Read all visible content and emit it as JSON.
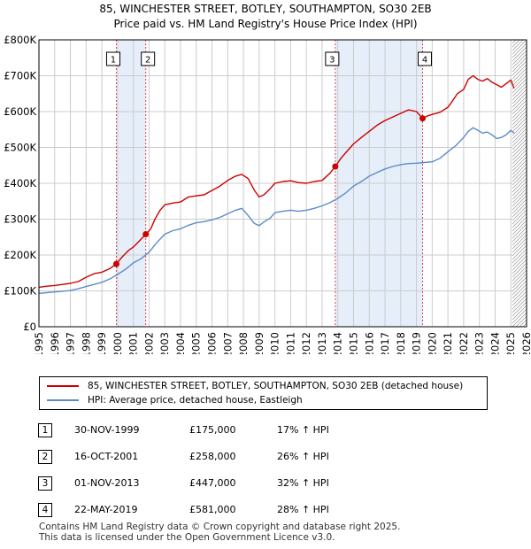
{
  "chart_data": {
    "type": "line",
    "title": "85, WINCHESTER STREET, BOTLEY, SOUTHAMPTON, SO30 2EB",
    "subtitle": "Price paid vs. HM Land Registry's House Price Index (HPI)",
    "xlim": [
      1995,
      2026
    ],
    "ylim": [
      0,
      800000
    ],
    "x_ticks": [
      "1995",
      "1996",
      "1997",
      "1998",
      "1999",
      "2000",
      "2001",
      "2002",
      "2003",
      "2004",
      "2005",
      "2006",
      "2007",
      "2008",
      "2009",
      "2010",
      "2011",
      "2012",
      "2013",
      "2014",
      "2015",
      "2016",
      "2017",
      "2018",
      "2019",
      "2020",
      "2021",
      "2022",
      "2023",
      "2024",
      "2025",
      "2026"
    ],
    "y_ticks": [
      {
        "value": 0,
        "label": "£0"
      },
      {
        "value": 100000,
        "label": "£100K"
      },
      {
        "value": 200000,
        "label": "£200K"
      },
      {
        "value": 300000,
        "label": "£300K"
      },
      {
        "value": 400000,
        "label": "£400K"
      },
      {
        "value": 500000,
        "label": "£500K"
      },
      {
        "value": 600000,
        "label": "£600K"
      },
      {
        "value": 700000,
        "label": "£700K"
      },
      {
        "value": 800000,
        "label": "£800K"
      }
    ],
    "grid": true,
    "forecast_from": 2025.1,
    "shaded_spans": [
      [
        1999.92,
        2001.79
      ],
      [
        2013.84,
        2019.39
      ]
    ],
    "series": [
      {
        "name": "85, WINCHESTER STREET, BOTLEY, SOUTHAMPTON, SO30 2EB (detached house)",
        "color": "#cc0000",
        "x": [
          1995,
          1995.5,
          1996,
          1996.5,
          1997,
          1997.5,
          1998,
          1998.5,
          1999,
          1999.5,
          1999.92,
          2000.3,
          2000.7,
          2001,
          2001.4,
          2001.79,
          2002.1,
          2002.4,
          2002.7,
          2003,
          2003.5,
          2004,
          2004.5,
          2005,
          2005.5,
          2006,
          2006.5,
          2007,
          2007.5,
          2007.9,
          2008.3,
          2008.7,
          2009,
          2009.3,
          2009.7,
          2010,
          2010.5,
          2011,
          2011.5,
          2012,
          2012.5,
          2013,
          2013.5,
          2013.84,
          2014.2,
          2014.6,
          2015,
          2015.5,
          2016,
          2016.5,
          2017,
          2017.5,
          2018,
          2018.5,
          2019,
          2019.39,
          2019.7,
          2020,
          2020.5,
          2021,
          2021.3,
          2021.6,
          2022,
          2022.3,
          2022.6,
          2022.9,
          2023.2,
          2023.5,
          2023.8,
          2024.1,
          2024.4,
          2024.7,
          2025,
          2025.2
        ],
        "y": [
          110000,
          113000,
          115000,
          118000,
          121000,
          126000,
          138000,
          148000,
          152000,
          162000,
          175000,
          195000,
          213000,
          222000,
          240000,
          258000,
          272000,
          302000,
          325000,
          340000,
          345000,
          348000,
          362000,
          365000,
          368000,
          380000,
          392000,
          408000,
          420000,
          425000,
          413000,
          380000,
          362000,
          368000,
          385000,
          400000,
          405000,
          407000,
          402000,
          400000,
          405000,
          408000,
          428000,
          447000,
          470000,
          490000,
          510000,
          528000,
          545000,
          562000,
          575000,
          585000,
          595000,
          605000,
          600000,
          581000,
          588000,
          592000,
          598000,
          612000,
          630000,
          650000,
          662000,
          690000,
          700000,
          690000,
          685000,
          692000,
          682000,
          675000,
          668000,
          678000,
          688000,
          665000
        ]
      },
      {
        "name": "HPI: Average price, detached house, Eastleigh",
        "color": "#5b8cc8",
        "x": [
          1995,
          1995.5,
          1996,
          1996.5,
          1997,
          1997.5,
          1998,
          1998.5,
          1999,
          1999.5,
          2000,
          2000.5,
          2001,
          2001.5,
          2002,
          2002.5,
          2003,
          2003.5,
          2004,
          2004.5,
          2005,
          2005.5,
          2006,
          2006.5,
          2007,
          2007.5,
          2007.9,
          2008.3,
          2008.7,
          2009,
          2009.3,
          2009.7,
          2010,
          2010.5,
          2011,
          2011.5,
          2012,
          2012.5,
          2013,
          2013.5,
          2014,
          2014.5,
          2015,
          2015.5,
          2016,
          2016.5,
          2017,
          2017.5,
          2018,
          2018.5,
          2019,
          2019.5,
          2020,
          2020.5,
          2021,
          2021.5,
          2022,
          2022.3,
          2022.6,
          2022.9,
          2023.2,
          2023.5,
          2023.8,
          2024.1,
          2024.4,
          2024.7,
          2025,
          2025.2
        ],
        "y": [
          93000,
          95000,
          97000,
          99000,
          101000,
          106000,
          112000,
          118000,
          124000,
          133000,
          146000,
          160000,
          178000,
          190000,
          208000,
          235000,
          258000,
          268000,
          273000,
          283000,
          290000,
          293000,
          298000,
          305000,
          315000,
          325000,
          330000,
          310000,
          288000,
          282000,
          292000,
          303000,
          318000,
          322000,
          325000,
          322000,
          325000,
          330000,
          337000,
          346000,
          358000,
          373000,
          392000,
          405000,
          420000,
          430000,
          440000,
          447000,
          452000,
          455000,
          456000,
          458000,
          460000,
          470000,
          488000,
          505000,
          528000,
          545000,
          555000,
          548000,
          540000,
          543000,
          535000,
          525000,
          528000,
          535000,
          548000,
          540000
        ]
      }
    ],
    "sales": [
      {
        "id": "1",
        "x": 1999.92,
        "y": 175000
      },
      {
        "id": "2",
        "x": 2001.79,
        "y": 258000
      },
      {
        "id": "3",
        "x": 2013.84,
        "y": 447000
      },
      {
        "id": "4",
        "x": 2019.39,
        "y": 581000
      }
    ]
  },
  "legend": {
    "property": "85, WINCHESTER STREET, BOTLEY, SOUTHAMPTON, SO30 2EB (detached house)",
    "hpi": "HPI: Average price, detached house, Eastleigh"
  },
  "sales_table": [
    {
      "id": "1",
      "date": "30-NOV-1999",
      "price": "£175,000",
      "hpi": "17% ↑ HPI"
    },
    {
      "id": "2",
      "date": "16-OCT-2001",
      "price": "£258,000",
      "hpi": "26% ↑ HPI"
    },
    {
      "id": "3",
      "date": "01-NOV-2013",
      "price": "£447,000",
      "hpi": "32% ↑ HPI"
    },
    {
      "id": "4",
      "date": "22-MAY-2019",
      "price": "£581,000",
      "hpi": "28% ↑ HPI"
    }
  ],
  "footer": {
    "line1": "Contains HM Land Registry data © Crown copyright and database right 2025.",
    "line2": "This data is licensed under the Open Government Licence v3.0."
  },
  "colors": {
    "property": "#cc0000",
    "hpi": "#5b8cc8",
    "shade": "#e6eefa",
    "grid": "#cccccc"
  }
}
